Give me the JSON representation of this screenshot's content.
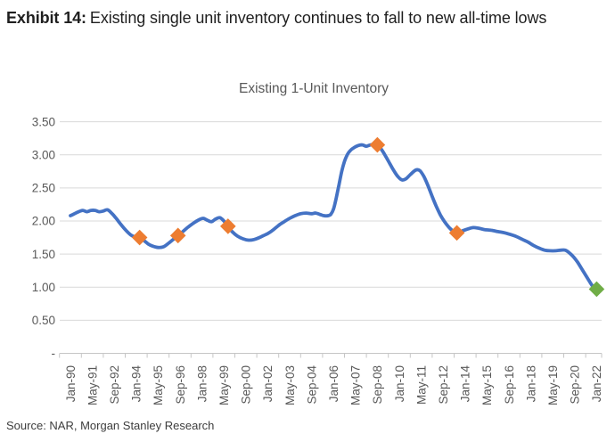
{
  "exhibit": {
    "label": "Exhibit 14:",
    "title": "Existing single unit inventory continues to fall to new all-time lows"
  },
  "source": "Source: NAR, Morgan Stanley Research",
  "chart_data": {
    "type": "line",
    "title": "Existing 1-Unit Inventory",
    "xlabel": "",
    "ylabel": "",
    "x_unit": "months since Jan-1990",
    "x_tick_interval_months": 16,
    "x_tick_labels": [
      "Jan-90",
      "May-91",
      "Sep-92",
      "Jan-94",
      "May-95",
      "Sep-96",
      "Jan-98",
      "May-99",
      "Sep-00",
      "Jan-02",
      "May-03",
      "Sep-04",
      "Jan-06",
      "May-07",
      "Sep-08",
      "Jan-10",
      "May-11",
      "Sep-12",
      "Jan-14",
      "May-15",
      "Sep-16",
      "Jan-18",
      "May-19",
      "Sep-20",
      "Jan-22"
    ],
    "y_tick_labels": [
      "-",
      "0.50",
      "1.00",
      "1.50",
      "2.00",
      "2.50",
      "3.00",
      "3.50"
    ],
    "y_tick_values": [
      0,
      0.5,
      1.0,
      1.5,
      2.0,
      2.5,
      3.0,
      3.5
    ],
    "ylim": [
      0,
      3.5
    ],
    "grid": "horizontal",
    "legend": "none",
    "series": [
      {
        "name": "Existing 1-Unit Inventory",
        "color": "#4472C4",
        "points": [
          [
            0,
            2.08
          ],
          [
            3,
            2.11
          ],
          [
            6,
            2.14
          ],
          [
            9,
            2.16
          ],
          [
            12,
            2.14
          ],
          [
            15,
            2.16
          ],
          [
            18,
            2.16
          ],
          [
            21,
            2.14
          ],
          [
            24,
            2.15
          ],
          [
            27,
            2.17
          ],
          [
            30,
            2.12
          ],
          [
            33,
            2.05
          ],
          [
            36,
            1.97
          ],
          [
            40,
            1.87
          ],
          [
            44,
            1.79
          ],
          [
            47,
            1.76
          ],
          [
            50.5,
            1.75
          ],
          [
            54,
            1.7
          ],
          [
            57,
            1.65
          ],
          [
            60,
            1.62
          ],
          [
            64,
            1.6
          ],
          [
            68,
            1.61
          ],
          [
            72,
            1.67
          ],
          [
            75,
            1.72
          ],
          [
            78.5,
            1.78
          ],
          [
            82,
            1.84
          ],
          [
            86,
            1.91
          ],
          [
            90,
            1.97
          ],
          [
            94,
            2.02
          ],
          [
            97,
            2.04
          ],
          [
            100,
            2.01
          ],
          [
            103,
            1.99
          ],
          [
            106,
            2.03
          ],
          [
            109,
            2.05
          ],
          [
            112,
            2.0
          ],
          [
            115,
            1.92
          ],
          [
            118,
            1.84
          ],
          [
            122,
            1.77
          ],
          [
            126,
            1.73
          ],
          [
            130,
            1.71
          ],
          [
            134,
            1.72
          ],
          [
            138,
            1.75
          ],
          [
            141,
            1.78
          ],
          [
            144,
            1.81
          ],
          [
            147,
            1.85
          ],
          [
            150,
            1.9
          ],
          [
            153,
            1.95
          ],
          [
            156,
            1.99
          ],
          [
            160,
            2.04
          ],
          [
            164,
            2.08
          ],
          [
            168,
            2.11
          ],
          [
            172,
            2.12
          ],
          [
            176,
            2.11
          ],
          [
            179,
            2.12
          ],
          [
            182,
            2.1
          ],
          [
            185,
            2.08
          ],
          [
            188,
            2.08
          ],
          [
            190,
            2.1
          ],
          [
            192,
            2.18
          ],
          [
            194,
            2.35
          ],
          [
            196,
            2.55
          ],
          [
            198,
            2.75
          ],
          [
            200,
            2.9
          ],
          [
            202,
            3.0
          ],
          [
            204,
            3.06
          ],
          [
            207,
            3.11
          ],
          [
            210,
            3.14
          ],
          [
            213,
            3.15
          ],
          [
            216,
            3.13
          ],
          [
            219,
            3.15
          ],
          [
            224,
            3.15
          ],
          [
            227,
            3.08
          ],
          [
            230,
            2.98
          ],
          [
            233,
            2.87
          ],
          [
            236,
            2.76
          ],
          [
            239,
            2.67
          ],
          [
            242,
            2.62
          ],
          [
            245,
            2.64
          ],
          [
            248,
            2.7
          ],
          [
            252,
            2.77
          ],
          [
            255,
            2.76
          ],
          [
            258,
            2.67
          ],
          [
            261,
            2.53
          ],
          [
            264,
            2.37
          ],
          [
            267,
            2.22
          ],
          [
            270,
            2.09
          ],
          [
            273,
            1.99
          ],
          [
            276,
            1.91
          ],
          [
            279,
            1.85
          ],
          [
            282,
            1.82
          ],
          [
            286,
            1.85
          ],
          [
            290,
            1.88
          ],
          [
            294,
            1.9
          ],
          [
            298,
            1.89
          ],
          [
            302,
            1.87
          ],
          [
            307,
            1.86
          ],
          [
            312,
            1.84
          ],
          [
            317,
            1.82
          ],
          [
            322,
            1.79
          ],
          [
            326,
            1.76
          ],
          [
            330,
            1.72
          ],
          [
            334,
            1.68
          ],
          [
            338,
            1.63
          ],
          [
            342,
            1.59
          ],
          [
            346,
            1.56
          ],
          [
            350,
            1.55
          ],
          [
            354,
            1.55
          ],
          [
            358,
            1.56
          ],
          [
            361,
            1.56
          ],
          [
            364,
            1.52
          ],
          [
            367,
            1.46
          ],
          [
            370,
            1.38
          ],
          [
            373,
            1.28
          ],
          [
            376,
            1.18
          ],
          [
            379,
            1.08
          ],
          [
            381,
            1.02
          ],
          [
            384,
            0.97
          ]
        ]
      }
    ],
    "markers": [
      {
        "month": 50.5,
        "value": 1.75,
        "color": "#ED7D31",
        "shape": "diamond"
      },
      {
        "month": 78.5,
        "value": 1.78,
        "color": "#ED7D31",
        "shape": "diamond"
      },
      {
        "month": 115,
        "value": 1.92,
        "color": "#ED7D31",
        "shape": "diamond"
      },
      {
        "month": 224,
        "value": 3.15,
        "color": "#ED7D31",
        "shape": "diamond"
      },
      {
        "month": 282,
        "value": 1.82,
        "color": "#ED7D31",
        "shape": "diamond"
      },
      {
        "month": 384,
        "value": 0.97,
        "color": "#70AD47",
        "shape": "diamond"
      }
    ],
    "colors": {
      "line": "#4472C4",
      "highlight_marker": "#ED7D31",
      "latest_marker": "#70AD47",
      "grid": "#D9D9D9",
      "axis": "#C6C6C6",
      "axis_text": "#595959"
    }
  }
}
